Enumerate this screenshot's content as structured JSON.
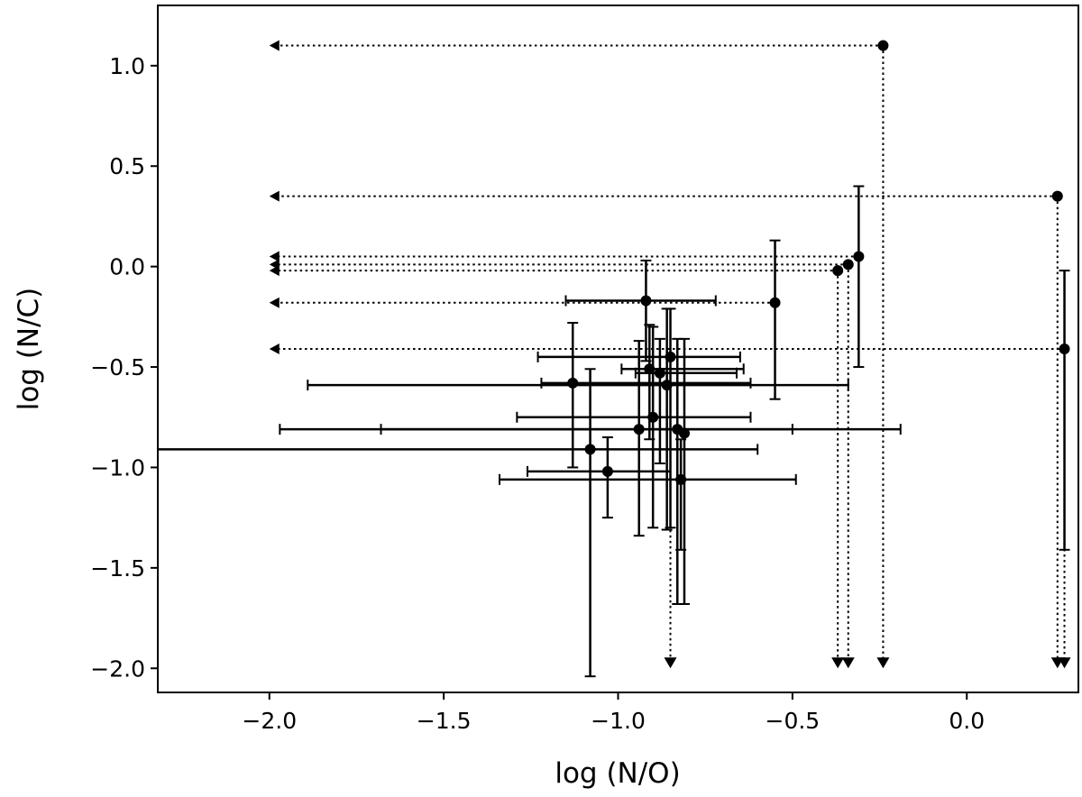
{
  "chart_data": {
    "type": "scatter",
    "title": "",
    "xlabel": "log (N/O)",
    "ylabel": "log (N/C)",
    "xlim": [
      -2.32,
      0.32
    ],
    "ylim": [
      -2.12,
      1.3
    ],
    "xticks": [
      -2.0,
      -1.5,
      -1.0,
      -0.5,
      0.0
    ],
    "xtick_labels": [
      "−2.0",
      "−1.5",
      "−1.0",
      "−0.5",
      "0.0"
    ],
    "yticks": [
      -2.0,
      -1.5,
      -1.0,
      -0.5,
      0.0,
      0.5,
      1.0
    ],
    "ytick_labels": [
      "−2.0",
      "−1.5",
      "−1.0",
      "−0.5",
      "0.0",
      "0.5",
      "1.0"
    ],
    "grid": false,
    "color": "#000000",
    "series": [
      {
        "points": [
          {
            "x": -0.24,
            "y": 1.1,
            "upper_limit_x": true,
            "upper_limit_y": true
          },
          {
            "x": 0.26,
            "y": 0.35,
            "upper_limit_x": true,
            "upper_limit_y": true
          },
          {
            "x": -0.31,
            "y": 0.05,
            "yerr": [
              0.55,
              0.35
            ],
            "upper_limit_x": true
          },
          {
            "x": -0.34,
            "y": 0.01,
            "upper_limit_x": true,
            "upper_limit_y": true
          },
          {
            "x": -0.37,
            "y": -0.02,
            "upper_limit_x": true,
            "upper_limit_y": true
          },
          {
            "x": -0.55,
            "y": -0.18,
            "yerr": [
              0.48,
              0.31
            ],
            "upper_limit_x": true
          },
          {
            "x": 0.28,
            "y": -0.41,
            "yerr": [
              1.0,
              0.39
            ],
            "upper_limit_x": true,
            "upper_limit_y": true
          },
          {
            "x": -0.92,
            "y": -0.17,
            "xerr": [
              0.23,
              0.2
            ],
            "yerr": [
              0.3,
              0.2
            ]
          },
          {
            "x": -1.13,
            "y": -0.58,
            "xerr": [
              0.09,
              0.51
            ],
            "yerr": [
              0.42,
              0.3
            ]
          },
          {
            "x": -0.85,
            "y": -0.45,
            "xerr": [
              0.38,
              0.2
            ],
            "yerr": [
              0.85,
              0.24
            ],
            "upper_limit_y": true
          },
          {
            "x": -0.91,
            "y": -0.51,
            "xerr": [
              0.08,
              0.27
            ],
            "yerr": [
              0.35,
              0.22
            ]
          },
          {
            "x": -0.88,
            "y": -0.53,
            "xerr": [
              0.07,
              0.22
            ],
            "yerr": [
              0.45,
              0.17
            ]
          },
          {
            "x": -0.86,
            "y": -0.59,
            "xerr": [
              1.03,
              0.52
            ],
            "yerr": [
              0.72,
              0.38
            ]
          },
          {
            "x": -0.9,
            "y": -0.75,
            "xerr": [
              0.39,
              0.28
            ],
            "yerr": [
              0.55,
              0.45
            ]
          },
          {
            "x": -0.94,
            "y": -0.81,
            "xerr": [
              1.03,
              0.44
            ],
            "yerr": [
              0.53,
              0.44
            ]
          },
          {
            "x": -0.83,
            "y": -0.81,
            "xerr": [
              0.85,
              0.64
            ],
            "yerr": [
              0.87,
              0.45
            ]
          },
          {
            "x": -1.08,
            "y": -0.91,
            "xerr": [
              1.24,
              0.48
            ],
            "yerr": [
              1.13,
              0.4
            ]
          },
          {
            "x": -1.03,
            "y": -1.02,
            "xerr": [
              0.23,
              0.18
            ],
            "yerr": [
              0.23,
              0.17
            ]
          },
          {
            "x": -0.81,
            "y": -0.83,
            "yerr": [
              0.85,
              0.47
            ]
          },
          {
            "x": -0.82,
            "y": -1.06,
            "xerr": [
              0.52,
              0.33
            ],
            "yerr": [
              0.35,
              0.2
            ]
          }
        ]
      }
    ]
  }
}
